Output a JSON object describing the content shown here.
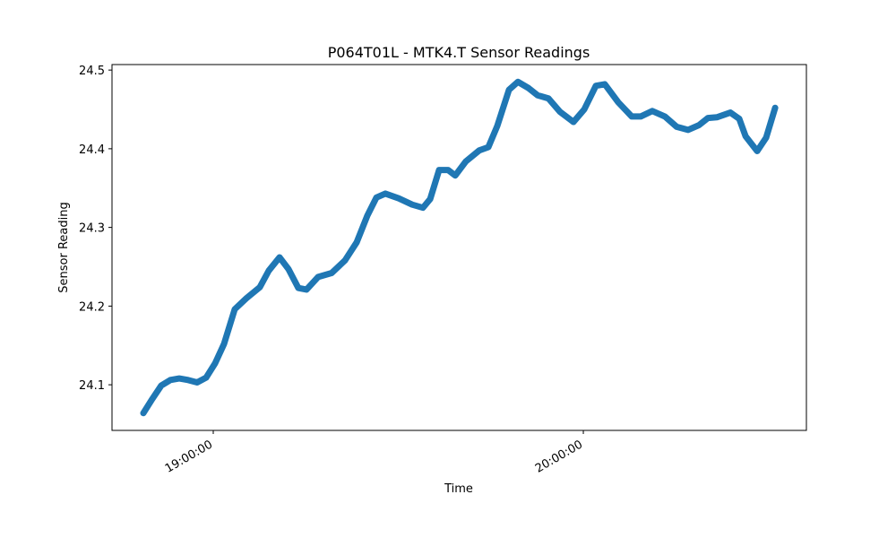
{
  "chart_data": {
    "type": "line",
    "title": "P064T01L - MTK4.T Sensor Readings",
    "xlabel": "Time",
    "ylabel": "Sensor Reading",
    "color": "#1f77b4",
    "x": [
      "18:48:40",
      "18:50:07",
      "18:51:34",
      "18:53:02",
      "18:54:29",
      "18:55:56",
      "18:57:23",
      "18:58:50",
      "19:00:17",
      "19:01:45",
      "19:03:29",
      "19:05:23",
      "19:07:33",
      "19:09:00",
      "19:10:45",
      "19:12:12",
      "19:13:48",
      "19:15:07",
      "19:17:00",
      "19:19:11",
      "19:21:21",
      "19:23:15",
      "19:24:59",
      "19:26:27",
      "19:27:54",
      "19:30:04",
      "19:32:15",
      "19:34:00",
      "19:35:10",
      "19:36:37",
      "19:38:04",
      "19:39:14",
      "19:40:58",
      "19:43:09",
      "19:44:36",
      "19:46:03",
      "19:47:57",
      "19:49:24",
      "19:51:08",
      "19:52:35",
      "19:54:20",
      "19:56:13",
      "19:58:24",
      "20:00:09",
      "20:02:02",
      "20:03:29",
      "20:05:40",
      "20:07:51",
      "20:09:18",
      "20:11:11",
      "20:13:13",
      "20:15:07",
      "20:17:00",
      "20:18:45",
      "20:20:12",
      "20:21:39",
      "20:23:50",
      "20:25:17",
      "20:26:18",
      "20:28:11",
      "20:29:38",
      "20:31:06"
    ],
    "values": [
      24.064,
      24.082,
      24.099,
      24.106,
      24.108,
      24.106,
      24.103,
      24.109,
      24.127,
      24.152,
      24.196,
      24.21,
      24.224,
      24.245,
      24.262,
      24.247,
      24.223,
      24.221,
      24.237,
      24.242,
      24.258,
      24.281,
      24.315,
      24.338,
      24.343,
      24.337,
      24.329,
      24.325,
      24.336,
      24.373,
      24.373,
      24.366,
      24.384,
      24.398,
      24.402,
      24.429,
      24.475,
      24.485,
      24.477,
      24.468,
      24.464,
      24.447,
      24.434,
      24.45,
      24.48,
      24.482,
      24.459,
      24.441,
      24.441,
      24.448,
      24.441,
      24.428,
      24.424,
      24.43,
      24.439,
      24.44,
      24.446,
      24.438,
      24.416,
      24.397,
      24.414,
      24.452
    ],
    "xlim": [
      "18:43:35",
      "20:36:10"
    ],
    "xticks": [
      "19:00:00",
      "20:00:00"
    ],
    "ylim": [
      24.042,
      24.507
    ],
    "yticks": [
      24.1,
      24.2,
      24.3,
      24.4,
      24.5
    ]
  }
}
